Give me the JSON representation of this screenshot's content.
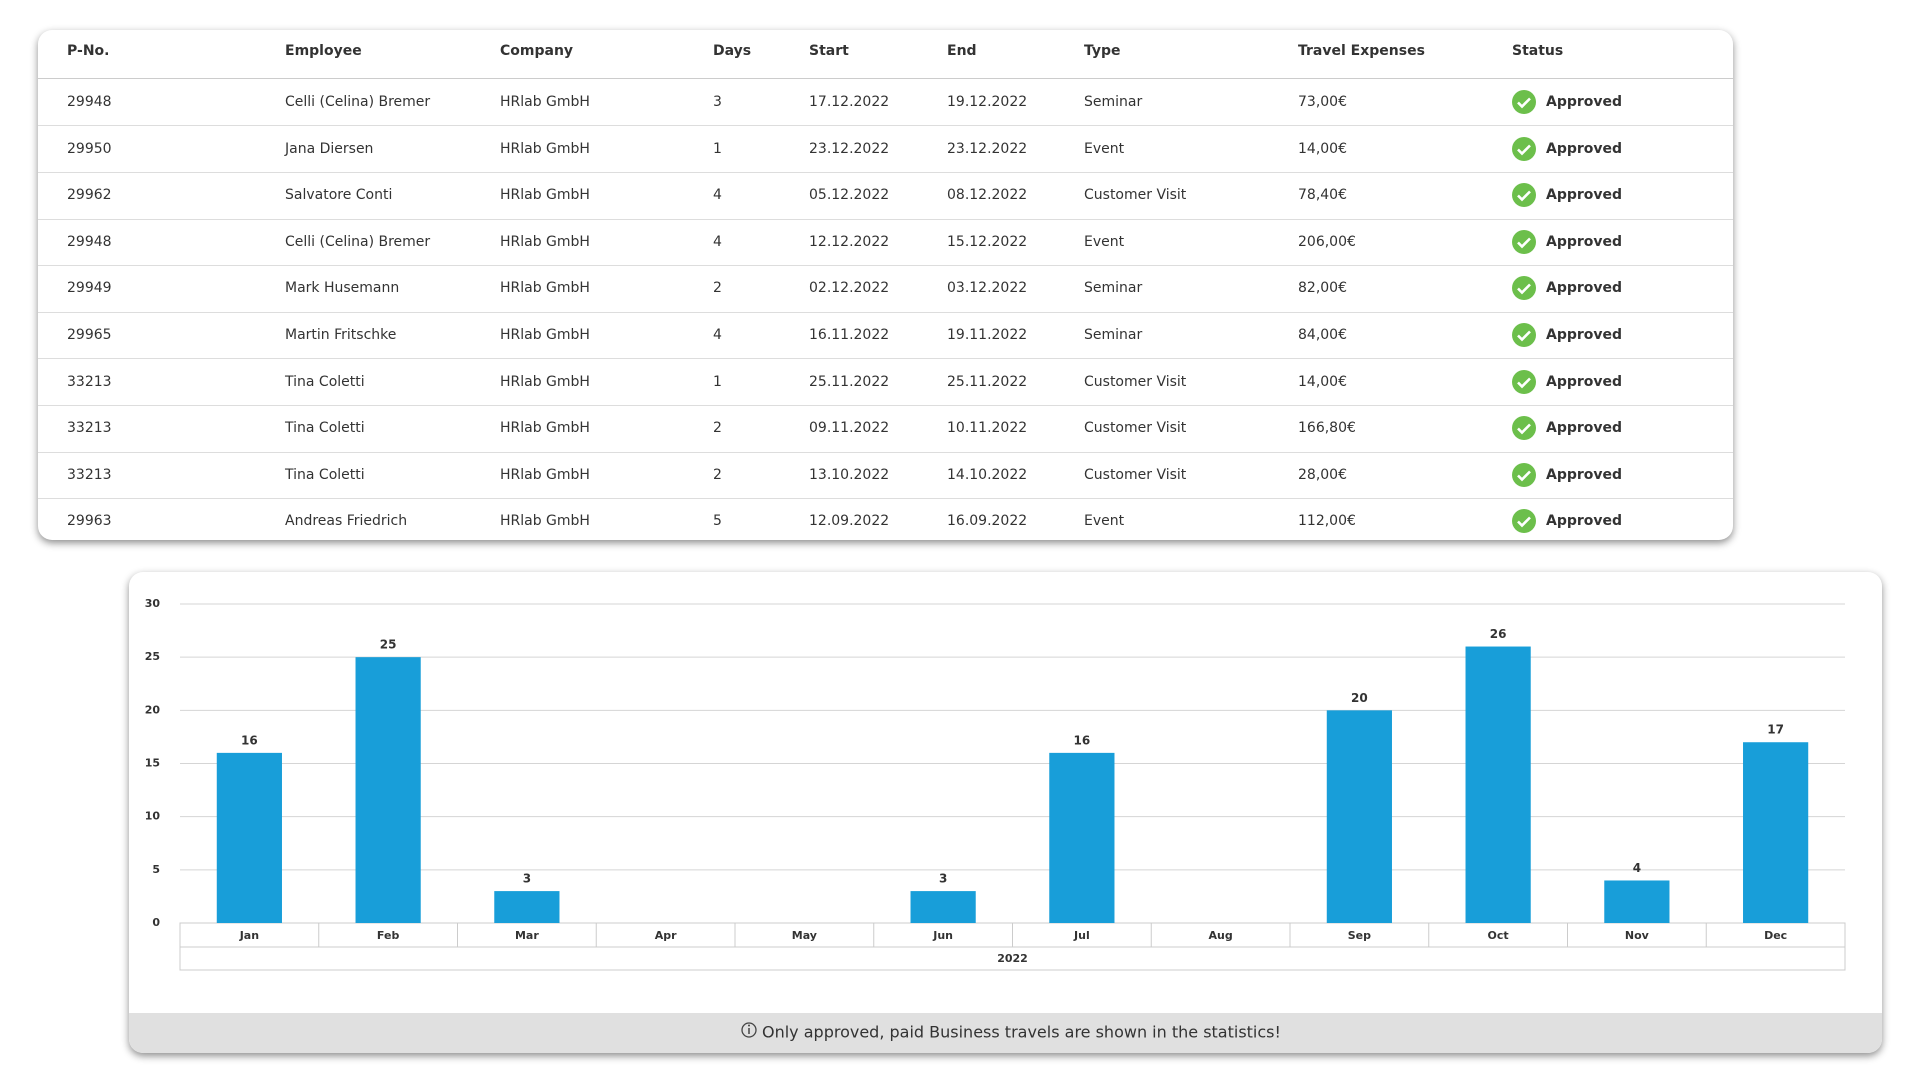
{
  "table": {
    "headers": [
      "P-No.",
      "Employee",
      "Company",
      "Days",
      "Start",
      "End",
      "Type",
      "Travel Expenses",
      "Status"
    ],
    "rows": [
      [
        "29948",
        "Celli (Celina) Bremer",
        "HRlab GmbH",
        "3",
        "17.12.2022",
        "19.12.2022",
        "Seminar",
        "73,00€",
        "Approved"
      ],
      [
        "29950",
        "Jana Diersen",
        "HRlab GmbH",
        "1",
        "23.12.2022",
        "23.12.2022",
        "Event",
        "14,00€",
        "Approved"
      ],
      [
        "29962",
        "Salvatore Conti",
        "HRlab GmbH",
        "4",
        "05.12.2022",
        "08.12.2022",
        "Customer Visit",
        "78,40€",
        "Approved"
      ],
      [
        "29948",
        "Celli (Celina) Bremer",
        "HRlab GmbH",
        "4",
        "12.12.2022",
        "15.12.2022",
        "Event",
        "206,00€",
        "Approved"
      ],
      [
        "29949",
        "Mark Husemann",
        "HRlab GmbH",
        "2",
        "02.12.2022",
        "03.12.2022",
        "Seminar",
        "82,00€",
        "Approved"
      ],
      [
        "29965",
        "Martin Fritschke",
        "HRlab GmbH",
        "4",
        "16.11.2022",
        "19.11.2022",
        "Seminar",
        "84,00€",
        "Approved"
      ],
      [
        "33213",
        "Tina Coletti",
        "HRlab GmbH",
        "1",
        "25.11.2022",
        "25.11.2022",
        "Customer Visit",
        "14,00€",
        "Approved"
      ],
      [
        "33213",
        "Tina Coletti",
        "HRlab GmbH",
        "2",
        "09.11.2022",
        "10.11.2022",
        "Customer Visit",
        "166,80€",
        "Approved"
      ],
      [
        "33213",
        "Tina Coletti",
        "HRlab GmbH",
        "2",
        "13.10.2022",
        "14.10.2022",
        "Customer Visit",
        "28,00€",
        "Approved"
      ],
      [
        "29963",
        "Andreas Friedrich",
        "HRlab GmbH",
        "5",
        "12.09.2022",
        "16.09.2022",
        "Event",
        "112,00€",
        "Approved"
      ]
    ]
  },
  "chart_data": {
    "type": "bar",
    "categories": [
      "Jan",
      "Feb",
      "Mar",
      "Apr",
      "May",
      "Jun",
      "Jul",
      "Aug",
      "Sep",
      "Oct",
      "Nov",
      "Dec"
    ],
    "values": [
      16,
      25,
      3,
      null,
      null,
      3,
      16,
      null,
      20,
      26,
      4,
      17
    ],
    "x_group_label": "2022",
    "color": "#189ed9",
    "ylim": [
      0,
      30
    ],
    "yticks": [
      0,
      5,
      10,
      15,
      20,
      25,
      30
    ],
    "grid": true
  },
  "note": "Only approved, paid Business travels are shown in the statistics!"
}
